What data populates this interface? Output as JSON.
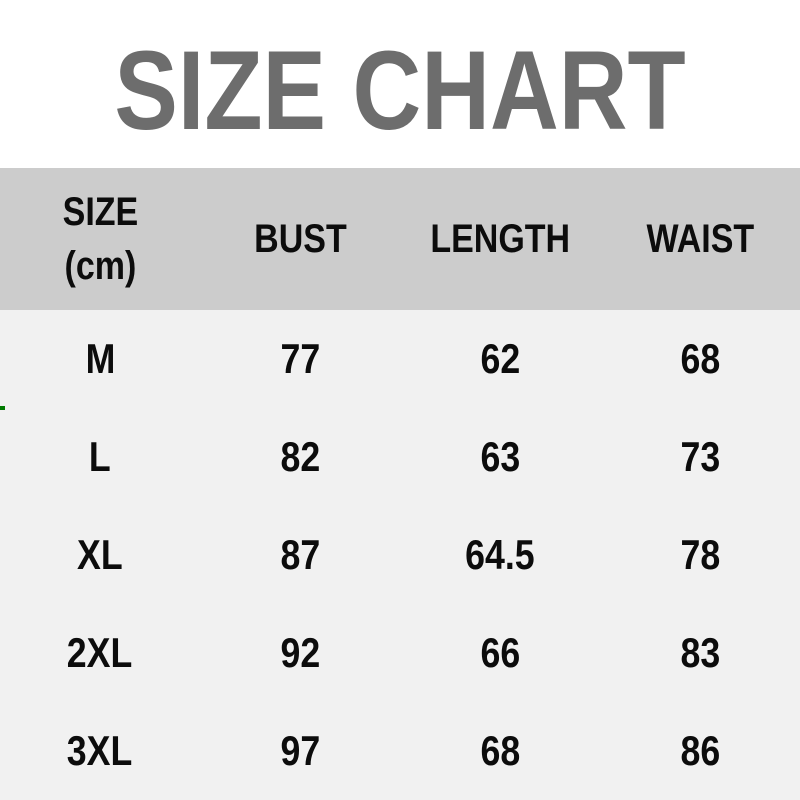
{
  "colors": {
    "title_gray": "#6d6d6d",
    "header_bg": "#cccccc",
    "body_bg": "#f1f1f1",
    "text_black": "#0c0c0c",
    "artifact_green": "#007a00",
    "page_bg": "#ffffff"
  },
  "chart_data": {
    "type": "table",
    "title": "SIZE CHART",
    "unit": "cm",
    "columns": [
      "SIZE (cm)",
      "BUST",
      "LENGTH",
      "WAIST"
    ],
    "header": {
      "size_line1": "SIZE",
      "size_line2": "(cm)",
      "bust": "BUST",
      "length": "LENGTH",
      "waist": "WAIST"
    },
    "rows": [
      {
        "size": "M",
        "bust": "77",
        "length": "62",
        "waist": "68"
      },
      {
        "size": "L",
        "bust": "82",
        "length": "63",
        "waist": "73"
      },
      {
        "size": "XL",
        "bust": "87",
        "length": "64.5",
        "waist": "78"
      },
      {
        "size": "2XL",
        "bust": "92",
        "length": "66",
        "waist": "83"
      },
      {
        "size": "3XL",
        "bust": "97",
        "length": "68",
        "waist": "86"
      }
    ]
  }
}
